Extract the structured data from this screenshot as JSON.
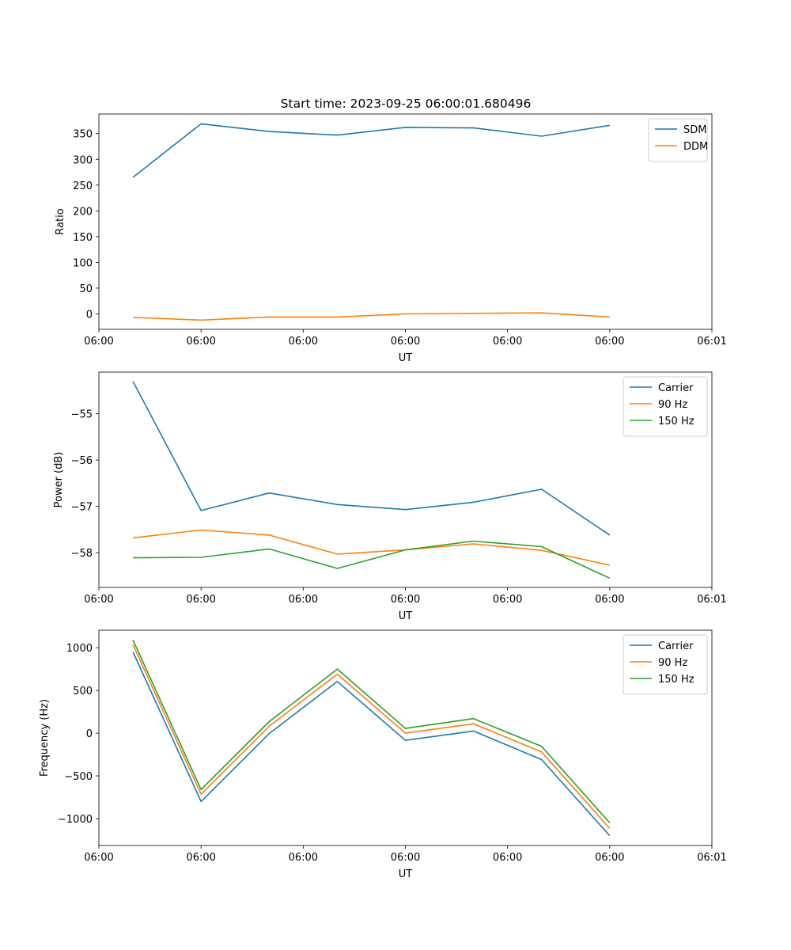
{
  "figure": {
    "title": "Start time: 2023-09-25 06:00:01.680496"
  },
  "chart_data": [
    {
      "type": "line",
      "title": "Start time: 2023-09-25 06:00:01.680496",
      "xlabel": "UT",
      "ylabel": "Ratio",
      "x": [
        0,
        1,
        2,
        3,
        4,
        5,
        6,
        7
      ],
      "xlim": [
        -0.5,
        8.5
      ],
      "xticks": [
        -0.5,
        1,
        2.5,
        4,
        5.5,
        7,
        8.5
      ],
      "xticklabels": [
        "06:00",
        "06:00",
        "06:00",
        "06:00",
        "06:00",
        "06:00",
        "06:01"
      ],
      "ylim": [
        -30,
        388
      ],
      "yticks": [
        0,
        50,
        100,
        150,
        200,
        250,
        300,
        350
      ],
      "yticklabels": [
        "0",
        "50",
        "100",
        "150",
        "200",
        "250",
        "300",
        "350"
      ],
      "legend": "top-right",
      "series": [
        {
          "name": "SDM",
          "color": "#1f77b4",
          "values": [
            265,
            369,
            354,
            347,
            362,
            361,
            345,
            366
          ]
        },
        {
          "name": "DDM",
          "color": "#ff7f0e",
          "values": [
            -7,
            -12,
            -6,
            -6,
            0,
            1,
            2,
            -6
          ]
        }
      ]
    },
    {
      "type": "line",
      "title": "",
      "xlabel": "UT",
      "ylabel": "Power (dB)",
      "x": [
        0,
        1,
        2,
        3,
        4,
        5,
        6,
        7
      ],
      "xlim": [
        -0.5,
        8.5
      ],
      "xticks": [
        -0.5,
        1,
        2.5,
        4,
        5.5,
        7,
        8.5
      ],
      "xticklabels": [
        "06:00",
        "06:00",
        "06:00",
        "06:00",
        "06:00",
        "06:00",
        "06:01"
      ],
      "ylim": [
        -58.75,
        -54.1
      ],
      "yticks": [
        -58,
        -57,
        -56,
        -55
      ],
      "yticklabels": [
        "−58",
        "−57",
        "−56",
        "−55"
      ],
      "legend": "top-right",
      "series": [
        {
          "name": "Carrier",
          "color": "#1f77b4",
          "values": [
            -54.3,
            -57.09,
            -56.71,
            -56.96,
            -57.07,
            -56.91,
            -56.63,
            -57.62
          ]
        },
        {
          "name": "90 Hz",
          "color": "#ff7f0e",
          "values": [
            -57.68,
            -57.51,
            -57.62,
            -58.03,
            -57.94,
            -57.81,
            -57.95,
            -58.27
          ]
        },
        {
          "name": "150 Hz",
          "color": "#2ca02c",
          "values": [
            -58.11,
            -58.1,
            -57.92,
            -58.34,
            -57.94,
            -57.75,
            -57.87,
            -58.55
          ]
        }
      ]
    },
    {
      "type": "line",
      "title": "",
      "xlabel": "UT",
      "ylabel": "Frequency (Hz)",
      "x": [
        0,
        1,
        2,
        3,
        4,
        5,
        6,
        7
      ],
      "xlim": [
        -0.5,
        8.5
      ],
      "xticks": [
        -0.5,
        1,
        2.5,
        4,
        5.5,
        7,
        8.5
      ],
      "xticklabels": [
        "06:00",
        "06:00",
        "06:00",
        "06:00",
        "06:00",
        "06:00",
        "06:01"
      ],
      "ylim": [
        -1315,
        1205
      ],
      "yticks": [
        -1000,
        -500,
        0,
        500,
        1000
      ],
      "yticklabels": [
        "−1000",
        "−500",
        "0",
        "500",
        "1000"
      ],
      "legend": "top-right",
      "series": [
        {
          "name": "Carrier",
          "color": "#1f77b4",
          "values": [
            950,
            -800,
            -5,
            605,
            -85,
            25,
            -310,
            -1200
          ]
        },
        {
          "name": "90 Hz",
          "color": "#ff7f0e",
          "values": [
            1035,
            -715,
            80,
            690,
            0,
            110,
            -220,
            -1115
          ]
        },
        {
          "name": "150 Hz",
          "color": "#2ca02c",
          "values": [
            1090,
            -660,
            135,
            750,
            55,
            170,
            -155,
            -1050
          ]
        }
      ]
    }
  ]
}
